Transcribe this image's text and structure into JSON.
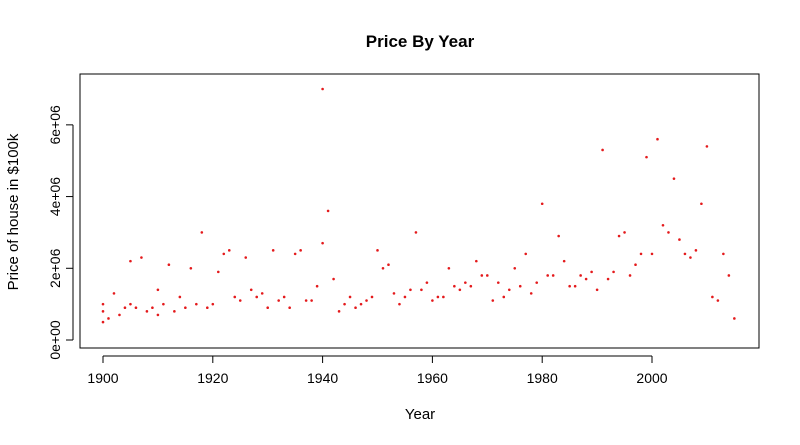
{
  "chart_data": {
    "type": "scatter",
    "title": "Price By Year",
    "xlabel": "Year",
    "ylabel": "Price of house in $100k",
    "xlim": [
      1900,
      2015
    ],
    "ylim": [
      0,
      7000000
    ],
    "x_ticks": [
      1900,
      1920,
      1940,
      1960,
      1980,
      2000
    ],
    "x_tick_labels": [
      "1900",
      "1920",
      "1940",
      "1960",
      "1980",
      "2000"
    ],
    "y_ticks": [
      0,
      2000000,
      4000000,
      6000000
    ],
    "y_tick_labels": [
      "0e+00",
      "2e+06",
      "4e+06",
      "6e+06"
    ],
    "grid": false,
    "point_color": "#e41a1c",
    "series": [
      {
        "x": [
          1900,
          1900,
          1900,
          1901,
          1902,
          1903,
          1904,
          1905,
          1905,
          1906,
          1907,
          1908,
          1909,
          1910,
          1910,
          1911,
          1912,
          1913,
          1914,
          1915,
          1916,
          1917,
          1918,
          1919,
          1920,
          1921,
          1922,
          1923,
          1924,
          1925,
          1926,
          1927,
          1928,
          1929,
          1930,
          1931,
          1932,
          1933,
          1934,
          1935,
          1936,
          1937,
          1938,
          1939,
          1940,
          1940,
          1941,
          1942,
          1943,
          1944,
          1945,
          1946,
          1947,
          1948,
          1949,
          1950,
          1951,
          1952,
          1953,
          1954,
          1955,
          1956,
          1957,
          1958,
          1959,
          1960,
          1961,
          1962,
          1963,
          1964,
          1965,
          1966,
          1967,
          1968,
          1969,
          1970,
          1971,
          1972,
          1973,
          1974,
          1975,
          1976,
          1977,
          1978,
          1979,
          1980,
          1981,
          1982,
          1983,
          1984,
          1985,
          1986,
          1987,
          1988,
          1989,
          1990,
          1991,
          1992,
          1993,
          1994,
          1995,
          1996,
          1997,
          1998,
          1999,
          2000,
          2001,
          2002,
          2003,
          2004,
          2005,
          2006,
          2007,
          2008,
          2009,
          2010,
          2011,
          2012,
          2013,
          2014,
          2015
        ],
        "y": [
          500000,
          800000,
          1000000,
          600000,
          1300000,
          700000,
          900000,
          2200000,
          1000000,
          900000,
          2300000,
          800000,
          900000,
          1400000,
          700000,
          1000000,
          2100000,
          800000,
          1200000,
          900000,
          2000000,
          1000000,
          3000000,
          900000,
          1000000,
          1900000,
          2400000,
          2500000,
          1200000,
          1100000,
          2300000,
          1400000,
          1200000,
          1300000,
          900000,
          2500000,
          1100000,
          1200000,
          900000,
          2400000,
          2500000,
          1100000,
          1100000,
          1500000,
          7000000,
          2700000,
          3600000,
          1700000,
          800000,
          1000000,
          1200000,
          900000,
          1000000,
          1100000,
          1200000,
          2500000,
          2000000,
          2100000,
          1300000,
          1000000,
          1200000,
          1400000,
          3000000,
          1400000,
          1600000,
          1100000,
          1200000,
          1200000,
          2000000,
          1500000,
          1400000,
          1600000,
          1500000,
          2200000,
          1800000,
          1800000,
          1100000,
          1600000,
          1200000,
          1400000,
          2000000,
          1500000,
          2400000,
          1300000,
          1600000,
          3800000,
          1800000,
          1800000,
          2900000,
          2200000,
          1500000,
          1500000,
          1800000,
          1700000,
          1900000,
          1400000,
          5300000,
          1700000,
          1900000,
          2900000,
          3000000,
          1800000,
          2100000,
          2400000,
          5100000,
          2400000,
          5600000,
          3200000,
          3000000,
          4500000,
          2800000,
          2400000,
          2300000,
          2500000,
          3800000,
          5400000,
          1200000,
          1100000,
          2400000,
          1800000,
          600000
        ]
      }
    ]
  }
}
